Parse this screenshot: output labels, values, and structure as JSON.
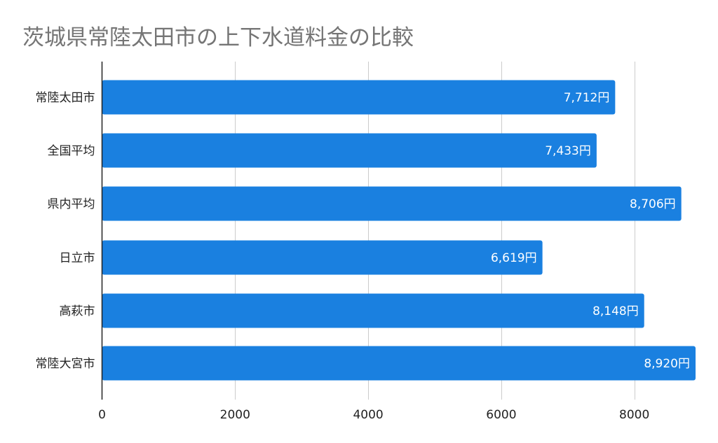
{
  "chart_data": {
    "type": "bar",
    "orientation": "horizontal",
    "title": "茨城県常陸太田市の上下水道料金の比較",
    "xlabel": "",
    "ylabel": "",
    "categories": [
      "常陸太田市",
      "全国平均",
      "県内平均",
      "日立市",
      "高萩市",
      "常陸大宮市"
    ],
    "series": [
      {
        "values": [
          7712,
          7433,
          8706,
          6619,
          8148,
          8920
        ],
        "data_labels": [
          "7,712円",
          "7,433円",
          "8,706円",
          "6,619円",
          "8,148円",
          "8,920円"
        ]
      }
    ],
    "xlim": [
      0,
      8920
    ],
    "x_ticks": [
      "0",
      "2000",
      "4000",
      "6000",
      "8000"
    ],
    "x_tick_values": [
      0,
      2000,
      4000,
      6000,
      8000
    ],
    "grid": "vertical",
    "legend": "none",
    "bar_color": "#1a80e0",
    "label_color": "#ffffff",
    "title_color": "#757575"
  }
}
